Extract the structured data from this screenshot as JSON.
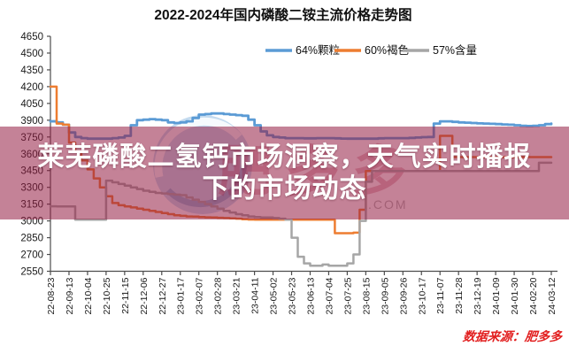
{
  "headline": {
    "line1": "莱芜磷酸二氢钙市场洞察，天气实时播报",
    "line2": "下的市场动态",
    "bg_rgba": "rgba(148,28,66,0.55)",
    "text_color": "#ffffff"
  },
  "source_note": {
    "text": "数据来源：肥多多",
    "color": "#e21f1f"
  },
  "watermark": {
    "big_text": "肥多多",
    "com_text": ".COM",
    "circle_color": "rgba(125,175,220,0.45)",
    "big_text_color": "rgba(170,30,55,0.30)",
    "com_color": "#b4b4b4"
  },
  "chart_data": {
    "type": "line",
    "title": "2022-2024年国内磷酸二铵主流价格走势图",
    "xlabel": "",
    "ylabel": "",
    "ylim": [
      2550,
      4650
    ],
    "ytick_step": 150,
    "grid": false,
    "legend_position": "top-right",
    "x_tick_every": 3,
    "x_tick_labels": [
      "22-08-23",
      "22-09-13",
      "22-10-04",
      "22-10-25",
      "22-11-15",
      "22-12-06",
      "22-12-27",
      "23-01-17",
      "23-02-07",
      "23-02-28",
      "23-03-21",
      "23-04-11",
      "23-05-02",
      "23-05-23",
      "23-06-13",
      "23-07-04",
      "23-07-25",
      "23-08-15",
      "23-09-05",
      "23-09-26",
      "23-10-17",
      "23-11-07",
      "23-11-28",
      "23-12-19",
      "24-01-09",
      "24-01-30",
      "24-02-20",
      "24-03-12"
    ],
    "series": [
      {
        "name": "64%颗粒",
        "color": "#5B9BD5",
        "width": 2.8,
        "values": [
          3890,
          3880,
          3860,
          3790,
          3750,
          3740,
          3735,
          3735,
          3735,
          3735,
          3740,
          3745,
          3760,
          3855,
          3900,
          3905,
          3910,
          3905,
          3900,
          3880,
          3875,
          3880,
          3890,
          3920,
          3950,
          3955,
          3960,
          3960,
          3955,
          3950,
          3945,
          3940,
          3905,
          3855,
          3800,
          3765,
          3750,
          3745,
          3740,
          3740,
          3740,
          3738,
          3738,
          3740,
          3740,
          3740,
          3738,
          3736,
          3735,
          3735,
          3735,
          3735,
          3735,
          3738,
          3740,
          3740,
          3740,
          3740,
          3742,
          3745,
          3748,
          3750,
          3870,
          3890,
          3890,
          3885,
          3880,
          3878,
          3875,
          3872,
          3870,
          3868,
          3865,
          3862,
          3860,
          3855,
          3850,
          3848,
          3850,
          3855,
          3865,
          3870
        ]
      },
      {
        "name": "60%褐色",
        "color": "#ED7D31",
        "width": 2.5,
        "values": [
          4200,
          3870,
          3860,
          3700,
          3620,
          3540,
          3460,
          3380,
          3300,
          3220,
          3160,
          3140,
          3130,
          3120,
          3110,
          3100,
          3090,
          3080,
          3070,
          3060,
          3050,
          3045,
          3040,
          3038,
          3035,
          3032,
          3030,
          3028,
          3025,
          3022,
          3020,
          3015,
          3012,
          3010,
          3010,
          3010,
          3010,
          3010,
          3010,
          3010,
          3010,
          3010,
          3010,
          3010,
          3010,
          3010,
          2890,
          2890,
          2890,
          2895,
          3100,
          3445,
          3445,
          3445,
          3445,
          3445,
          3445,
          3445,
          3445,
          3445,
          3445,
          3445,
          3445,
          3760,
          3760,
          3570,
          3570,
          3570,
          3570,
          3570,
          3570,
          3570,
          3570,
          3570,
          3570,
          3570,
          3570,
          3570,
          3570,
          3570,
          3570,
          3570
        ]
      },
      {
        "name": "57%含量",
        "color": "#A6A6A6",
        "width": 2.5,
        "values": [
          3130,
          3130,
          3130,
          3130,
          3010,
          3010,
          3010,
          3010,
          3010,
          3360,
          3345,
          3330,
          3315,
          3300,
          3285,
          3270,
          3260,
          3250,
          3245,
          3240,
          3235,
          3230,
          3210,
          3190,
          3170,
          3150,
          3130,
          3110,
          3090,
          3075,
          3060,
          3050,
          3040,
          3035,
          3030,
          3030,
          3025,
          3020,
          3010,
          2850,
          2680,
          2620,
          2600,
          2600,
          2610,
          2600,
          2600,
          2600,
          2620,
          2700,
          3000,
          3350,
          3445,
          3445,
          3445,
          3445,
          3445,
          3445,
          3445,
          3445,
          3445,
          3445,
          3445,
          3445,
          3445,
          3445,
          3445,
          3445,
          3445,
          3445,
          3445,
          3445,
          3445,
          3445,
          3445,
          3445,
          3445,
          3445,
          3445,
          3520,
          3520,
          3520
        ]
      }
    ]
  }
}
